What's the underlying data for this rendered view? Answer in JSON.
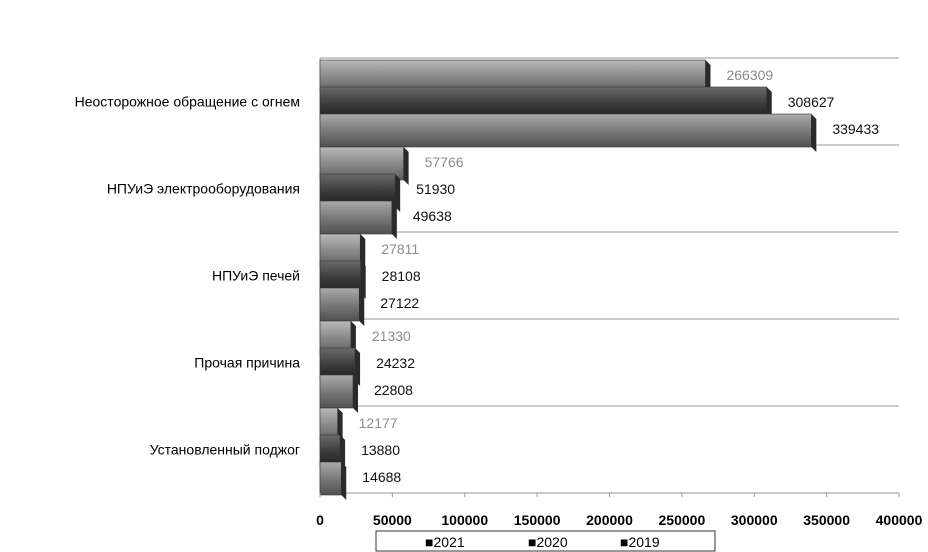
{
  "chart_data": {
    "type": "bar",
    "orientation": "horizontal",
    "categories": [
      "Неосторожное обращение с огнем",
      "НПУиЭ электрооборудования",
      "НПУиЭ печей",
      "Прочая причина",
      "Установленный поджог"
    ],
    "series": [
      {
        "name": "2021",
        "values": [
          266309,
          57766,
          27811,
          21330,
          12177
        ]
      },
      {
        "name": "2020",
        "values": [
          308627,
          51930,
          28108,
          24232,
          13880
        ]
      },
      {
        "name": "2019",
        "values": [
          339433,
          49638,
          27122,
          22808,
          14688
        ]
      }
    ],
    "xlim": [
      0,
      400000
    ],
    "x_ticks": [
      "0",
      "50000",
      "100000",
      "150000",
      "200000",
      "250000",
      "300000",
      "350000",
      "400000"
    ],
    "legend": [
      "■2021",
      "■2020",
      "■2019"
    ],
    "legend_position": "bottom",
    "grid": "horizontal separators between categories",
    "colors": {
      "2021": "#8a8a8a",
      "2020": "#3c3c3c",
      "2019": "#7a7a7a",
      "label_2021": "#8c8c8c",
      "label_other": "#111111"
    }
  }
}
